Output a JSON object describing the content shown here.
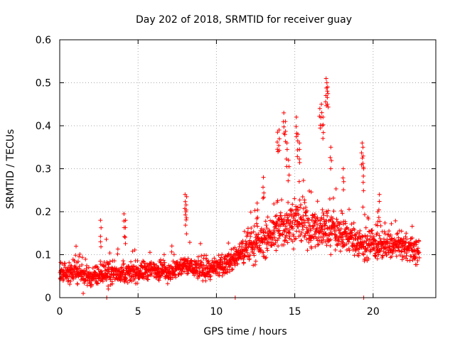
{
  "chart_data": {
    "type": "scatter",
    "title": "Day 202 of 2018, SRMTID for receiver guay",
    "xlabel": "GPS time / hours",
    "ylabel": "SRMTID / TECUs",
    "xlim": [
      0,
      24
    ],
    "ylim": [
      0,
      0.6
    ],
    "grid": true,
    "marker": "+",
    "color": "#ff0000",
    "x_ticks": [
      0,
      5,
      10,
      15,
      20
    ],
    "x_tick_labels": [
      "0",
      "5",
      "10",
      "15",
      "20"
    ],
    "y_ticks": [
      0,
      0.1,
      0.2,
      0.3,
      0.4,
      0.5,
      0.6
    ],
    "y_tick_labels": [
      "0",
      "0.1",
      "0.2",
      "0.3",
      "0.4",
      "0.5",
      "0.6"
    ],
    "series": [
      {
        "name": "SRMTID",
        "approx_profile": {
          "description": "dense scatter of samples across 0-23 h; profile gives approximate median value and spread per time",
          "t": [
            0,
            1,
            2,
            3,
            4,
            5,
            6,
            7,
            8,
            9,
            10,
            11,
            12,
            13,
            14,
            15,
            16,
            17,
            18,
            19,
            20,
            21,
            22,
            23
          ],
          "median": [
            0.06,
            0.06,
            0.045,
            0.06,
            0.055,
            0.06,
            0.065,
            0.06,
            0.075,
            0.065,
            0.065,
            0.085,
            0.12,
            0.13,
            0.16,
            0.18,
            0.16,
            0.16,
            0.15,
            0.13,
            0.12,
            0.12,
            0.12,
            0.1
          ],
          "spread": [
            0.025,
            0.025,
            0.02,
            0.03,
            0.02,
            0.025,
            0.025,
            0.025,
            0.025,
            0.025,
            0.025,
            0.025,
            0.04,
            0.04,
            0.05,
            0.05,
            0.05,
            0.05,
            0.04,
            0.04,
            0.035,
            0.03,
            0.03,
            0.03
          ]
        },
        "peaks": [
          {
            "x": 2.6,
            "y": 0.18
          },
          {
            "x": 4.1,
            "y": 0.195
          },
          {
            "x": 4.2,
            "y": 0.18
          },
          {
            "x": 8.0,
            "y": 0.24
          },
          {
            "x": 8.1,
            "y": 0.235
          },
          {
            "x": 8.05,
            "y": 0.2
          },
          {
            "x": 12.6,
            "y": 0.22
          },
          {
            "x": 13.0,
            "y": 0.28
          },
          {
            "x": 13.9,
            "y": 0.385
          },
          {
            "x": 14.0,
            "y": 0.39
          },
          {
            "x": 14.3,
            "y": 0.43
          },
          {
            "x": 14.4,
            "y": 0.41
          },
          {
            "x": 14.5,
            "y": 0.36
          },
          {
            "x": 14.6,
            "y": 0.32
          },
          {
            "x": 15.1,
            "y": 0.42
          },
          {
            "x": 15.2,
            "y": 0.38
          },
          {
            "x": 15.3,
            "y": 0.36
          },
          {
            "x": 16.6,
            "y": 0.44
          },
          {
            "x": 16.7,
            "y": 0.45
          },
          {
            "x": 16.8,
            "y": 0.42
          },
          {
            "x": 17.0,
            "y": 0.51
          },
          {
            "x": 17.05,
            "y": 0.5
          },
          {
            "x": 17.1,
            "y": 0.49
          },
          {
            "x": 17.3,
            "y": 0.35
          },
          {
            "x": 18.1,
            "y": 0.3
          },
          {
            "x": 19.3,
            "y": 0.36
          },
          {
            "x": 19.35,
            "y": 0.35
          },
          {
            "x": 19.4,
            "y": 0.3
          },
          {
            "x": 20.4,
            "y": 0.24
          },
          {
            "x": 20.3,
            "y": 0.2
          }
        ],
        "lows": [
          {
            "x": 3.0,
            "y": 0.0
          },
          {
            "x": 11.2,
            "y": 0.0
          },
          {
            "x": 19.4,
            "y": 0.0
          },
          {
            "x": 1.5,
            "y": 0.01
          },
          {
            "x": 3.1,
            "y": 0.02
          }
        ]
      }
    ]
  }
}
